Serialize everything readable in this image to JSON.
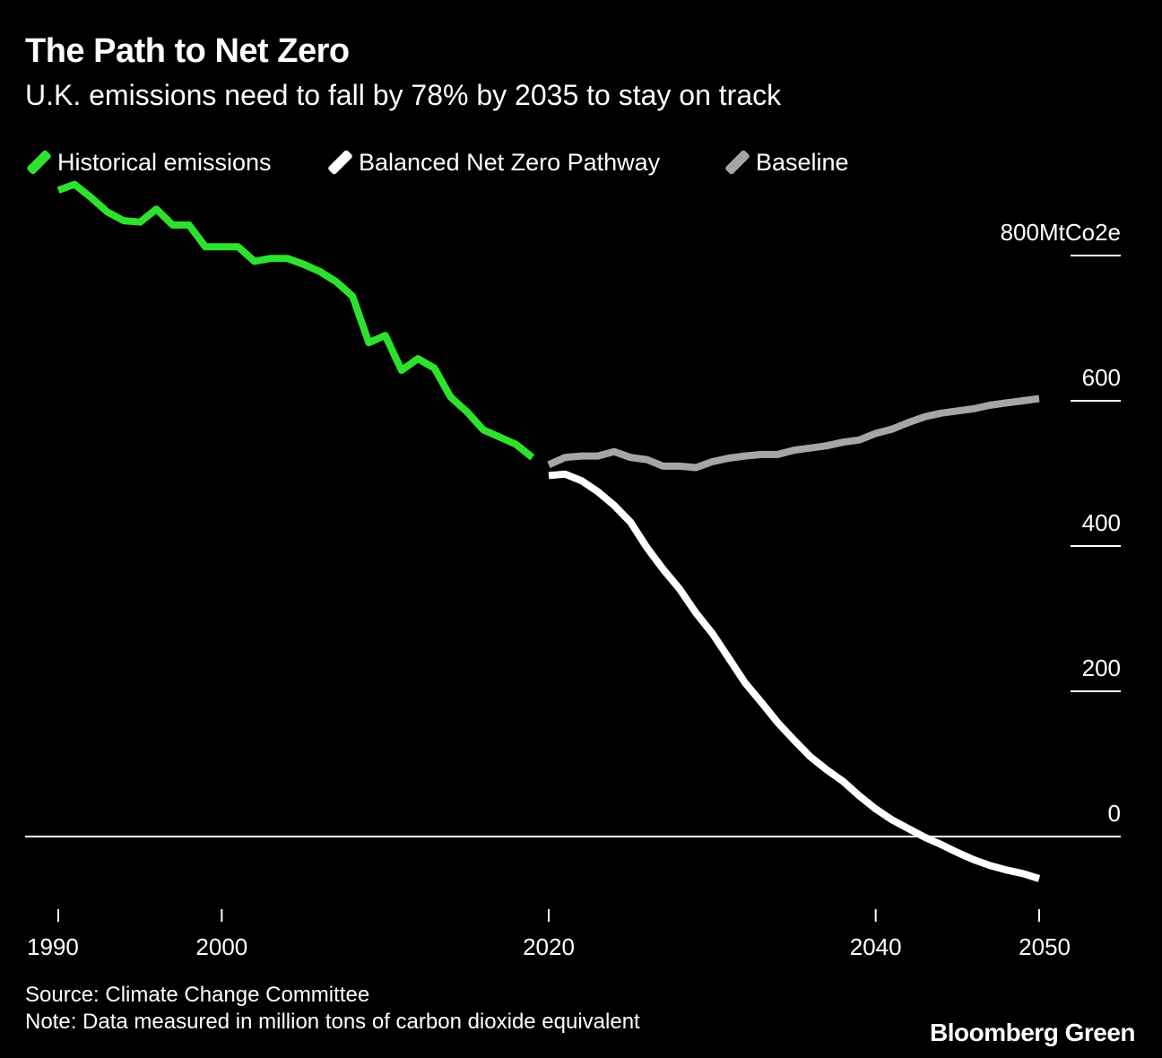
{
  "title": "The Path to Net Zero",
  "subtitle": "U.K. emissions need to fall by 78% by 2035 to stay on track",
  "legend": [
    {
      "label": "Historical emissions",
      "color": "#2de22d"
    },
    {
      "label": "Balanced Net Zero Pathway",
      "color": "#ffffff"
    },
    {
      "label": "Baseline",
      "color": "#a6a6a6"
    }
  ],
  "footer": {
    "source": "Source: Climate Change Committee",
    "note": "Note: Data measured in million tons of carbon dioxide equivalent"
  },
  "brand": "Bloomberg Green",
  "chart_data": {
    "type": "line",
    "title": "The Path to Net Zero",
    "subtitle": "U.K. emissions need to fall by 78% by 2035 to stay on track",
    "xlabel": "",
    "ylabel": "MtCo2e",
    "xlim": [
      1990,
      2050
    ],
    "ylim": [
      0,
      800
    ],
    "x_ticks": [
      1990,
      2000,
      2020,
      2040,
      2050
    ],
    "x_tick_labels": [
      "1990",
      "2000",
      "2020",
      "2040",
      "2050"
    ],
    "y_ticks": [
      0,
      200,
      400,
      600,
      800
    ],
    "y_tick_labels": [
      "0",
      "200",
      "400",
      "600",
      "800MtCo2e"
    ],
    "legend_position": "top-left",
    "series": [
      {
        "name": "Historical emissions",
        "color": "#2de22d",
        "x": [
          1990,
          1991,
          1992,
          1993,
          1994,
          1995,
          1996,
          1997,
          1998,
          1999,
          2000,
          2001,
          2002,
          2003,
          2004,
          2005,
          2006,
          2007,
          2008,
          2009,
          2010,
          2011,
          2012,
          2013,
          2014,
          2015,
          2016,
          2017,
          2018,
          2019
        ],
        "y": [
          890,
          898,
          880,
          860,
          848,
          846,
          864,
          842,
          842,
          812,
          812,
          812,
          792,
          796,
          796,
          788,
          778,
          764,
          744,
          680,
          690,
          642,
          658,
          645,
          605,
          585,
          560,
          550,
          540,
          522
        ]
      },
      {
        "name": "Balanced Net Zero Pathway",
        "color": "#ffffff",
        "x": [
          2020,
          2021,
          2022,
          2023,
          2024,
          2025,
          2026,
          2027,
          2028,
          2029,
          2030,
          2031,
          2032,
          2033,
          2034,
          2035,
          2036,
          2037,
          2038,
          2039,
          2040,
          2041,
          2042,
          2043,
          2044,
          2045,
          2046,
          2047,
          2048,
          2049,
          2050
        ],
        "y": [
          497,
          499,
          490,
          475,
          456,
          433,
          398,
          368,
          341,
          308,
          280,
          246,
          212,
          185,
          157,
          133,
          110,
          92,
          76,
          56,
          38,
          23,
          11,
          -1,
          -11,
          -22,
          -32,
          -40,
          -46,
          -51,
          -58
        ]
      },
      {
        "name": "Baseline",
        "color": "#a6a6a6",
        "x": [
          2020,
          2021,
          2022,
          2023,
          2024,
          2025,
          2026,
          2027,
          2028,
          2029,
          2030,
          2031,
          2032,
          2033,
          2034,
          2035,
          2036,
          2037,
          2038,
          2039,
          2040,
          2041,
          2042,
          2043,
          2044,
          2045,
          2046,
          2047,
          2048,
          2049,
          2050
        ],
        "y": [
          512,
          522,
          524,
          524,
          530,
          522,
          519,
          510,
          510,
          508,
          516,
          521,
          524,
          526,
          526,
          532,
          535,
          538,
          543,
          546,
          555,
          561,
          570,
          578,
          583,
          586,
          589,
          594,
          597,
          600,
          603
        ]
      }
    ],
    "baseline_zero_line": true
  }
}
